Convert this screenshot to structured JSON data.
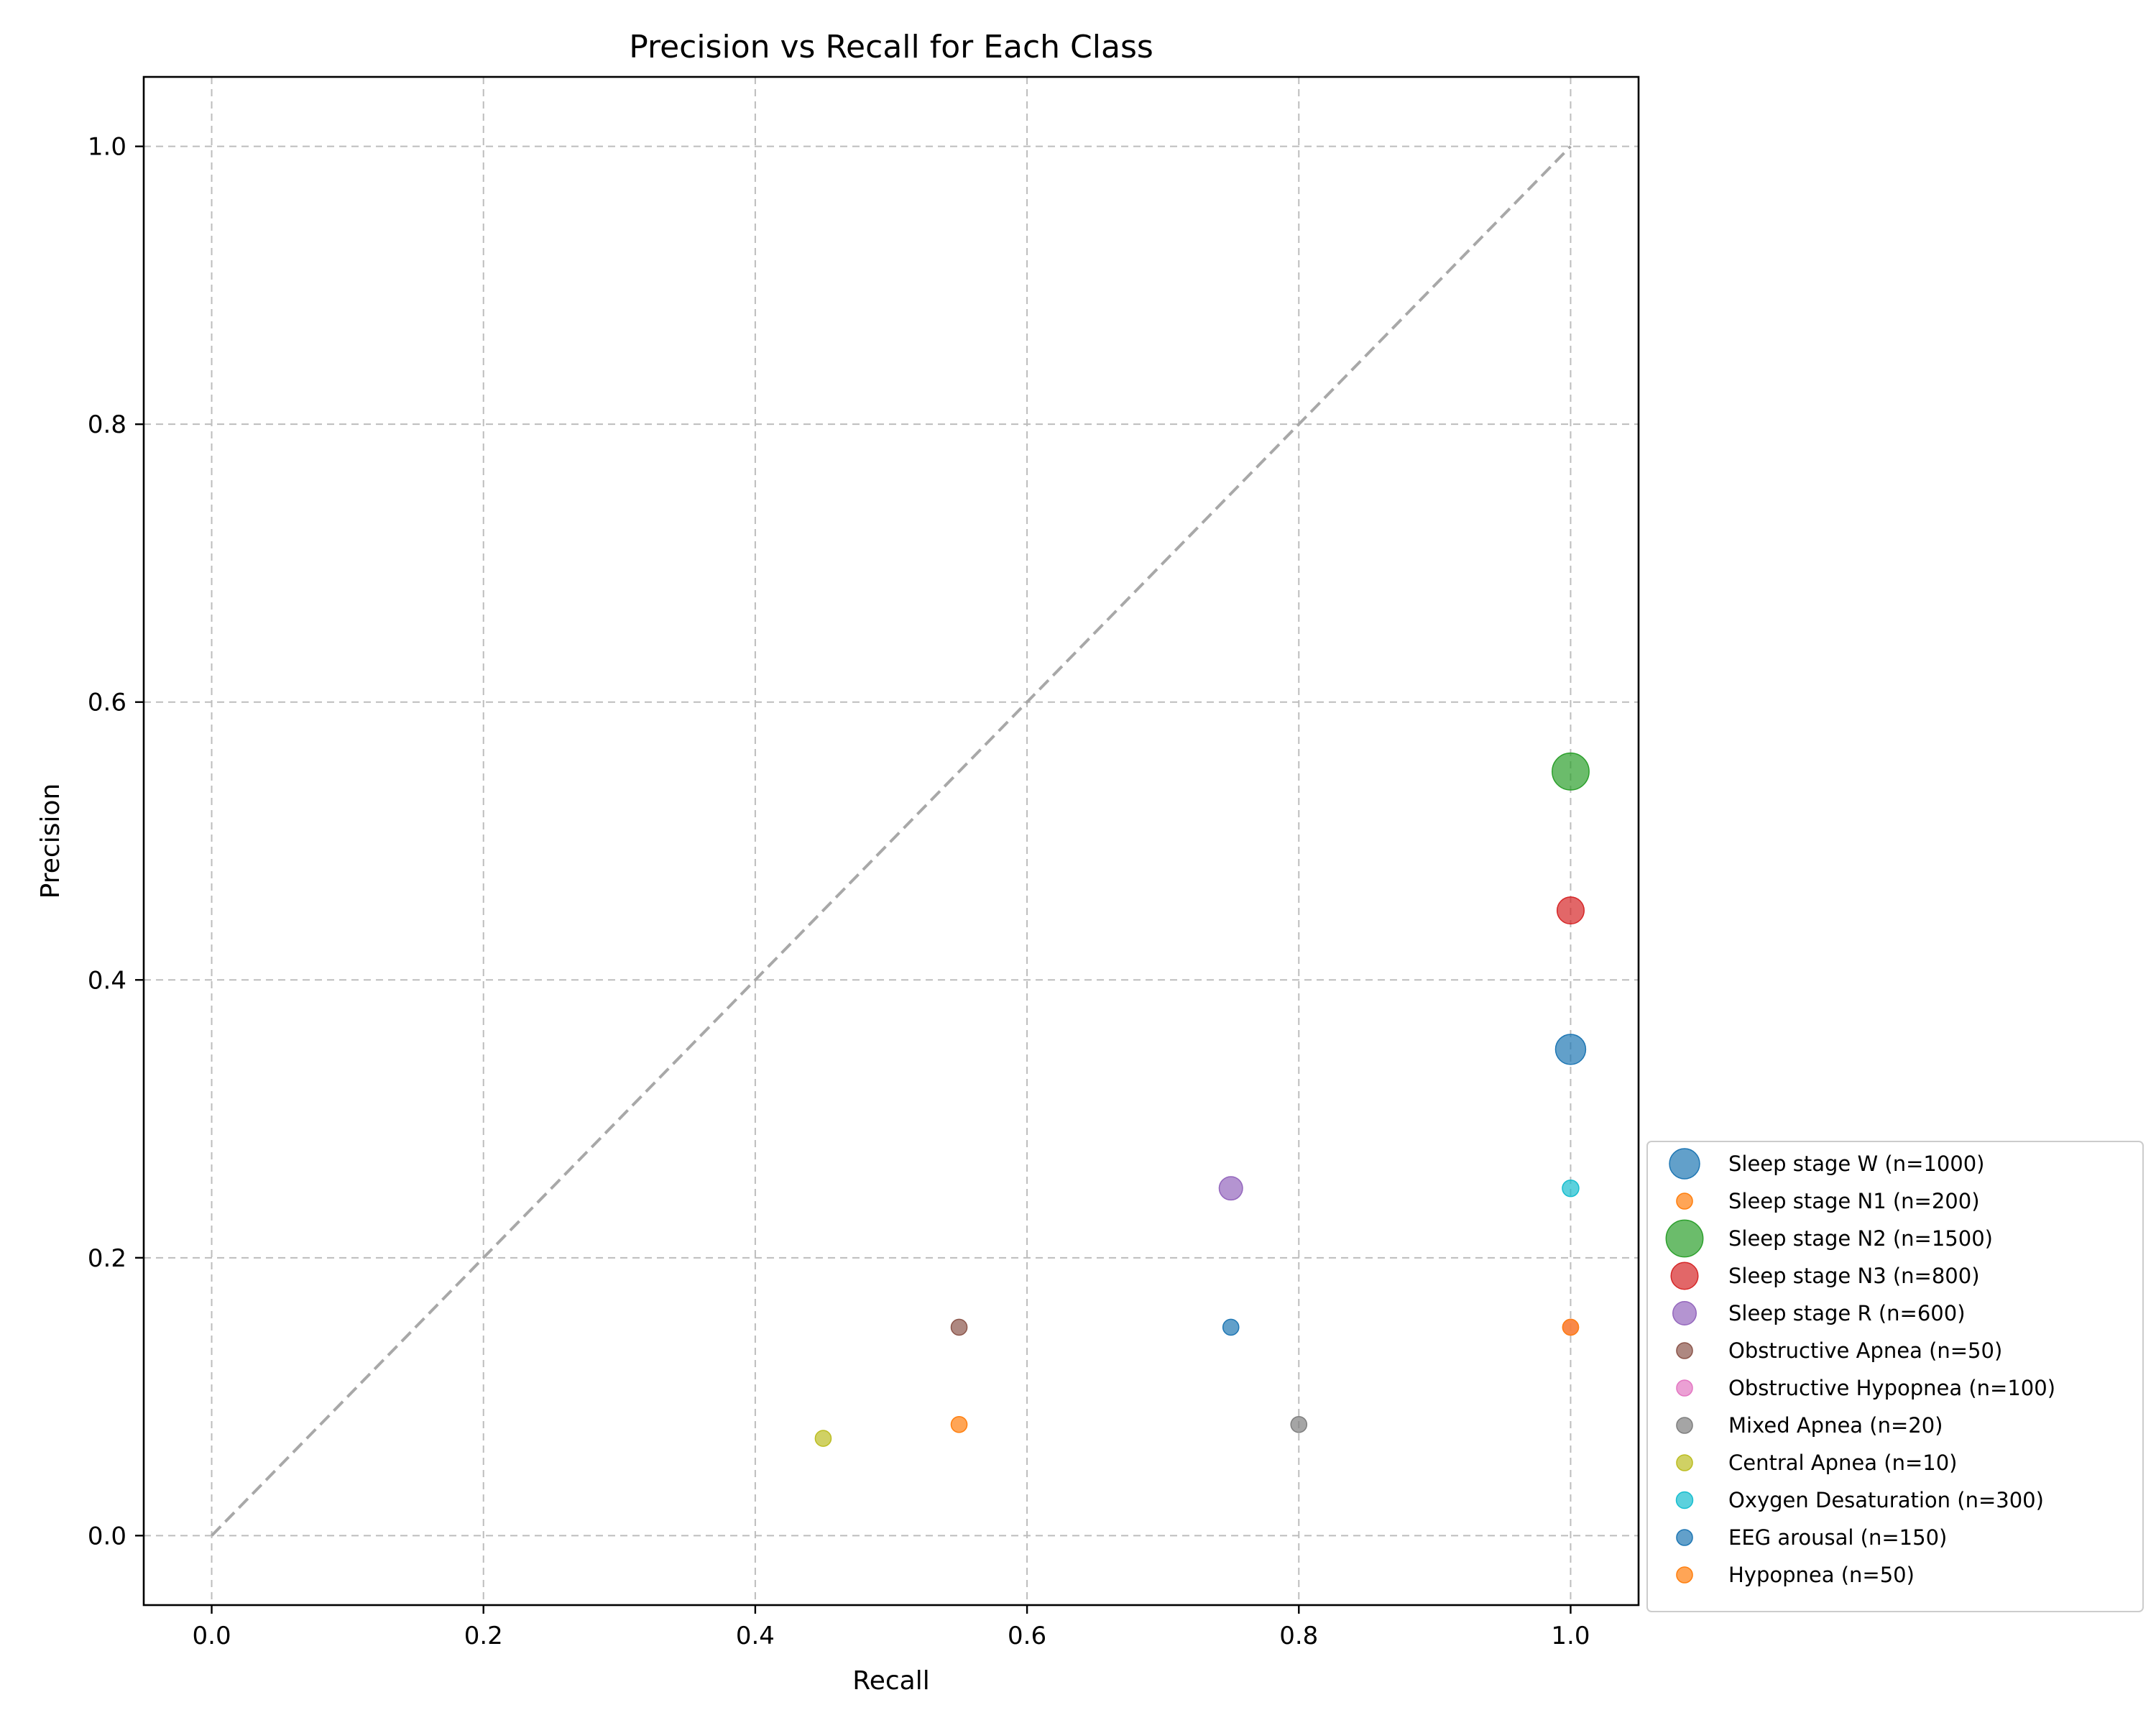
{
  "chart_data": {
    "type": "scatter",
    "title": "Precision vs Recall for Each Class",
    "xlabel": "Recall",
    "ylabel": "Precision",
    "xlim": [
      -0.05,
      1.05
    ],
    "ylim": [
      -0.05,
      1.05
    ],
    "xticks": [
      0.0,
      0.2,
      0.4,
      0.6,
      0.8,
      1.0
    ],
    "yticks": [
      0.0,
      0.2,
      0.4,
      0.6,
      0.8,
      1.0
    ],
    "xtick_labels": [
      "0.0",
      "0.2",
      "0.4",
      "0.6",
      "0.8",
      "1.0"
    ],
    "ytick_labels": [
      "0.0",
      "0.2",
      "0.4",
      "0.6",
      "0.8",
      "1.0"
    ],
    "grid": true,
    "legend_position": "lower-right outside",
    "reference_line": {
      "from": [
        0,
        0
      ],
      "to": [
        1,
        1
      ],
      "style": "dashed",
      "color": "#a8a8a8"
    },
    "series": [
      {
        "name": "Sleep stage W (n=1000)",
        "n": 1000,
        "color": "#1f77b4",
        "points": [
          {
            "x": 1.0,
            "y": 0.35
          }
        ]
      },
      {
        "name": "Sleep stage N1 (n=200)",
        "n": 200,
        "color": "#ff7f0e",
        "points": [
          {
            "x": 0.55,
            "y": 0.08
          }
        ]
      },
      {
        "name": "Sleep stage N2 (n=1500)",
        "n": 1500,
        "color": "#2ca02c",
        "points": [
          {
            "x": 1.0,
            "y": 0.55
          }
        ]
      },
      {
        "name": "Sleep stage N3 (n=800)",
        "n": 800,
        "color": "#d62728",
        "points": [
          {
            "x": 1.0,
            "y": 0.45
          }
        ]
      },
      {
        "name": "Sleep stage R (n=600)",
        "n": 600,
        "color": "#9467bd",
        "points": [
          {
            "x": 0.75,
            "y": 0.25
          }
        ]
      },
      {
        "name": "Obstructive Apnea (n=50)",
        "n": 50,
        "color": "#8c564b",
        "points": [
          {
            "x": 0.55,
            "y": 0.15
          }
        ]
      },
      {
        "name": "Obstructive Hypopnea (n=100)",
        "n": 100,
        "color": "#e377c2",
        "points": [
          {
            "x": 1.0,
            "y": 0.15
          }
        ]
      },
      {
        "name": "Mixed Apnea (n=20)",
        "n": 20,
        "color": "#7f7f7f",
        "points": [
          {
            "x": 0.8,
            "y": 0.08
          }
        ]
      },
      {
        "name": "Central Apnea (n=10)",
        "n": 10,
        "color": "#bcbd22",
        "points": [
          {
            "x": 0.45,
            "y": 0.07
          }
        ]
      },
      {
        "name": "Oxygen Desaturation (n=300)",
        "n": 300,
        "color": "#17becf",
        "points": [
          {
            "x": 1.0,
            "y": 0.25
          }
        ]
      },
      {
        "name": "EEG arousal (n=150)",
        "n": 150,
        "color": "#1f77b4",
        "points": [
          {
            "x": 0.75,
            "y": 0.15
          }
        ]
      },
      {
        "name": "Hypopnea (n=50)",
        "n": 50,
        "color": "#ff7f0e",
        "points": [
          {
            "x": 1.0,
            "y": 0.15
          }
        ]
      }
    ]
  }
}
